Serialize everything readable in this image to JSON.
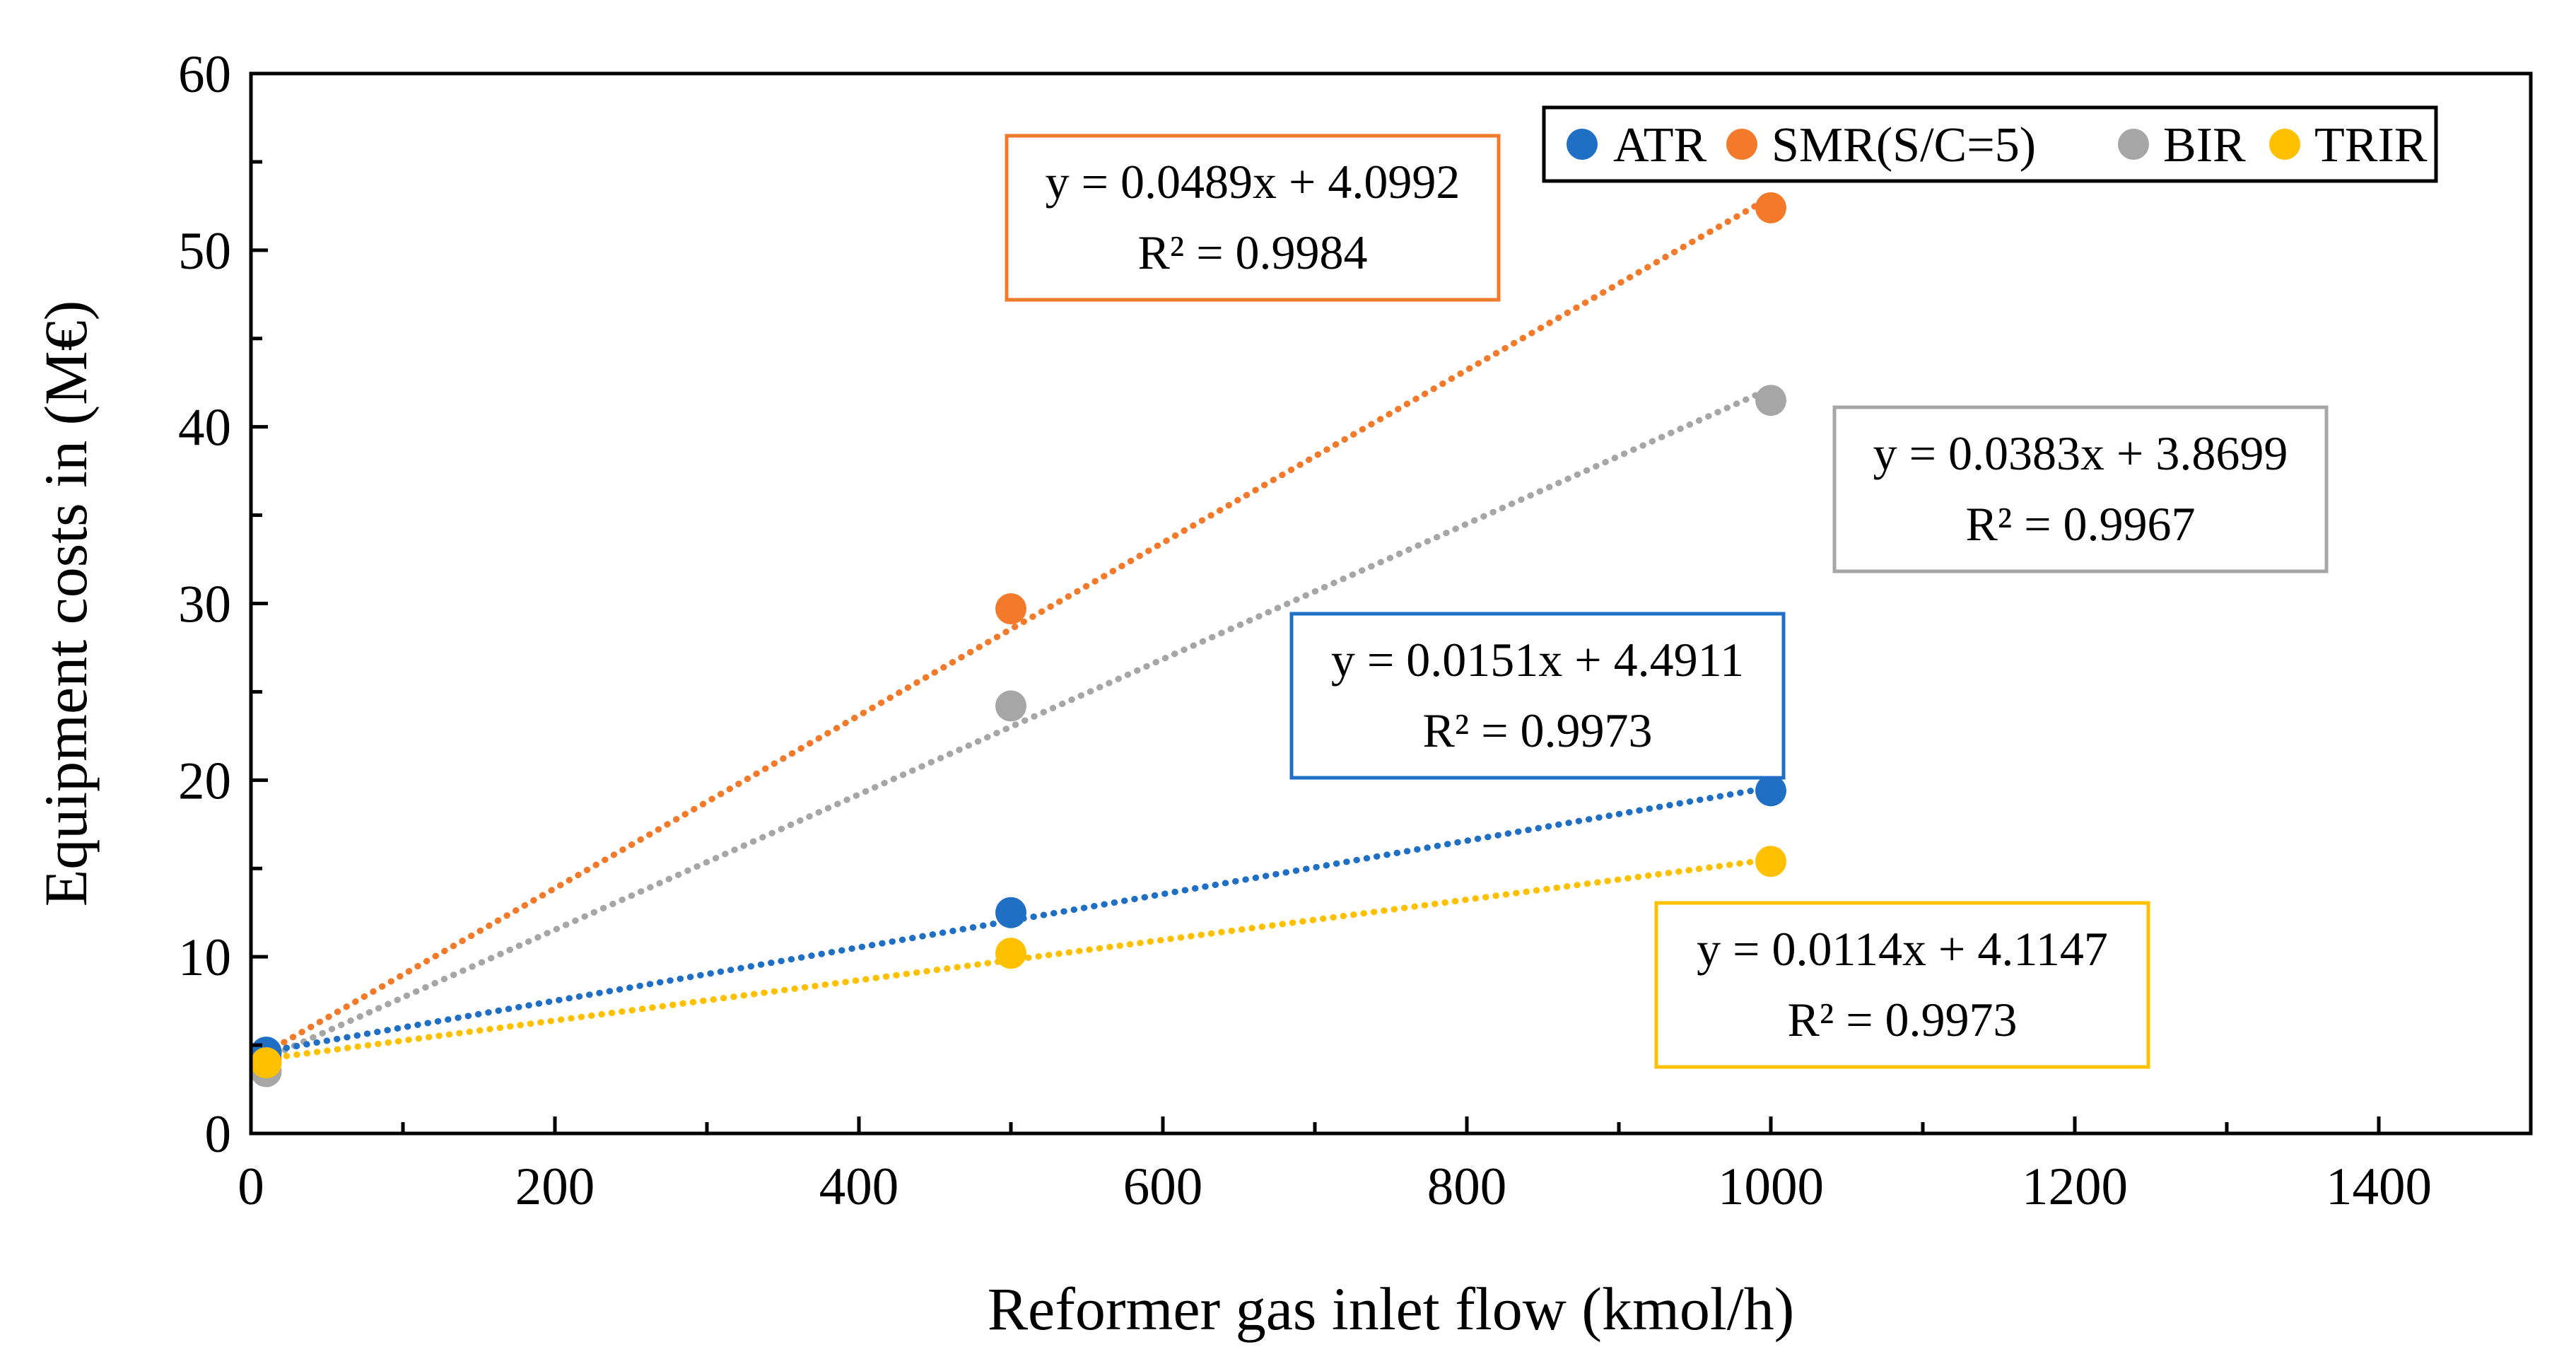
{
  "chart_data": {
    "type": "scatter",
    "title": "",
    "xlabel": "Reformer gas inlet flow (kmol/h)",
    "ylabel": "Equipment costs in (M€)",
    "xlim": [
      0,
      1500
    ],
    "ylim": [
      0,
      60
    ],
    "x_ticks": [
      0,
      200,
      400,
      600,
      800,
      1000,
      1200,
      1400
    ],
    "x_minor_step": 100,
    "y_ticks": [
      0,
      10,
      20,
      30,
      40,
      50,
      60
    ],
    "y_minor_step": 5,
    "x_tick_labels": [
      "0",
      "200",
      "400",
      "600",
      "800",
      "1000",
      "1200",
      "1400"
    ],
    "y_tick_labels": [
      "0",
      "10",
      "20",
      "30",
      "40",
      "50",
      "60"
    ],
    "grid": false,
    "legend_position": "top-right",
    "series": [
      {
        "name": "ATR",
        "color": "#1f6fc5",
        "x": [
          10,
          500,
          1000
        ],
        "y": [
          4.6,
          12.5,
          19.4
        ],
        "trendline": {
          "type": "linear",
          "slope": 0.0151,
          "intercept": 4.4911,
          "equation": "y = 0.0151x + 4.4911",
          "r2": "R² = 0.9973"
        }
      },
      {
        "name": "SMR(S/C=5)",
        "color": "#f47a2b",
        "x": [
          10,
          500,
          1000
        ],
        "y": [
          4.2,
          29.7,
          52.4
        ],
        "trendline": {
          "type": "linear",
          "slope": 0.0489,
          "intercept": 4.0992,
          "equation": "y = 0.0489x + 4.0992",
          "r2": "R² = 0.9984"
        }
      },
      {
        "name": "BIR",
        "color": "#a6a6a6",
        "x": [
          10,
          500,
          1000
        ],
        "y": [
          3.5,
          24.2,
          41.5
        ],
        "trendline": {
          "type": "linear",
          "slope": 0.0383,
          "intercept": 3.8699,
          "equation": "y = 0.0383x + 3.8699",
          "r2": "R² = 0.9967"
        }
      },
      {
        "name": "TRIR",
        "color": "#ffc000",
        "x": [
          10,
          500,
          1000
        ],
        "y": [
          4.0,
          10.2,
          15.4
        ],
        "trendline": {
          "type": "linear",
          "slope": 0.0114,
          "intercept": 4.1147,
          "equation": "y = 0.0114x + 4.1147",
          "r2": "R² = 0.9973"
        }
      }
    ]
  }
}
